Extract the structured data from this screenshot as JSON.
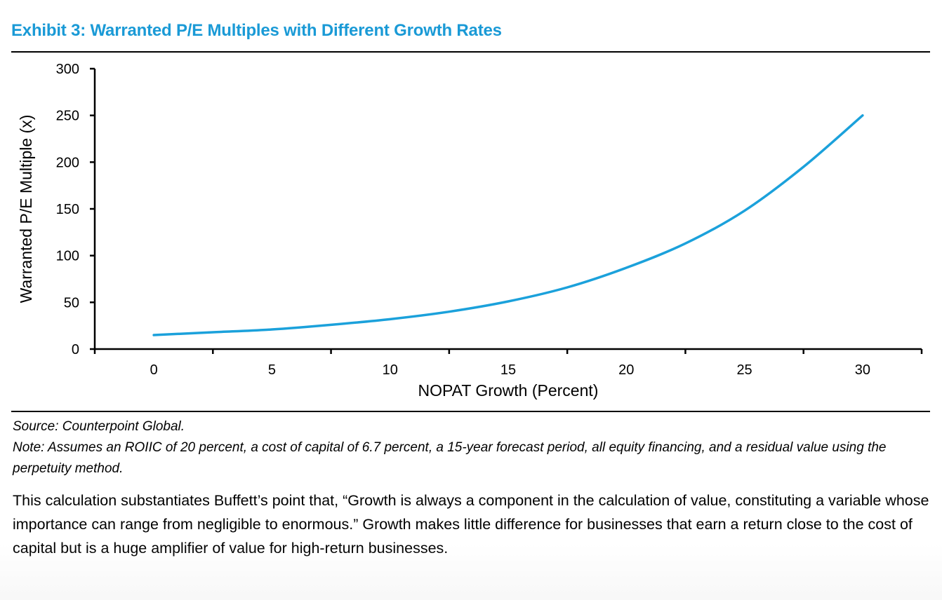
{
  "exhibit_title": "Exhibit 3: Warranted P/E Multiples with Different Growth Rates",
  "source": "Source: Counterpoint Global.",
  "note": "Note: Assumes an ROIIC of 20 percent, a cost of capital of 6.7 percent, a 15-year forecast period, all equity financing, and a residual value using the perpetuity method.",
  "body_text": "This calculation substantiates Buffett’s point that, “Growth is always a component in the calculation of value, constituting a variable whose importance can range from negligible to enormous.” Growth makes little difference for businesses that earn a return close to the cost of capital but is a huge amplifier of value for high-return businesses.",
  "colors": {
    "title": "#1a9ad6",
    "line": "#1ba1db",
    "axis": "#000000"
  },
  "chart_data": {
    "type": "line",
    "title": "Exhibit 3: Warranted P/E Multiples with Different Growth Rates",
    "xlabel": "NOPAT Growth (Percent)",
    "ylabel": "Warranted P/E Multiple (x)",
    "xlim": [
      -2.5,
      32.5
    ],
    "ylim": [
      0,
      300
    ],
    "x_ticks": [
      0,
      5,
      10,
      15,
      20,
      25,
      30
    ],
    "y_ticks": [
      0,
      50,
      100,
      150,
      200,
      250,
      300
    ],
    "grid": false,
    "series": [
      {
        "name": "Warranted P/E Multiple",
        "x": [
          0,
          2.5,
          5,
          7.5,
          10,
          12.5,
          15,
          17.5,
          20,
          22.5,
          25,
          27.5,
          30
        ],
        "y": [
          15,
          18,
          21,
          26,
          32,
          40,
          51,
          66,
          87,
          113,
          148,
          195,
          250
        ]
      }
    ]
  }
}
